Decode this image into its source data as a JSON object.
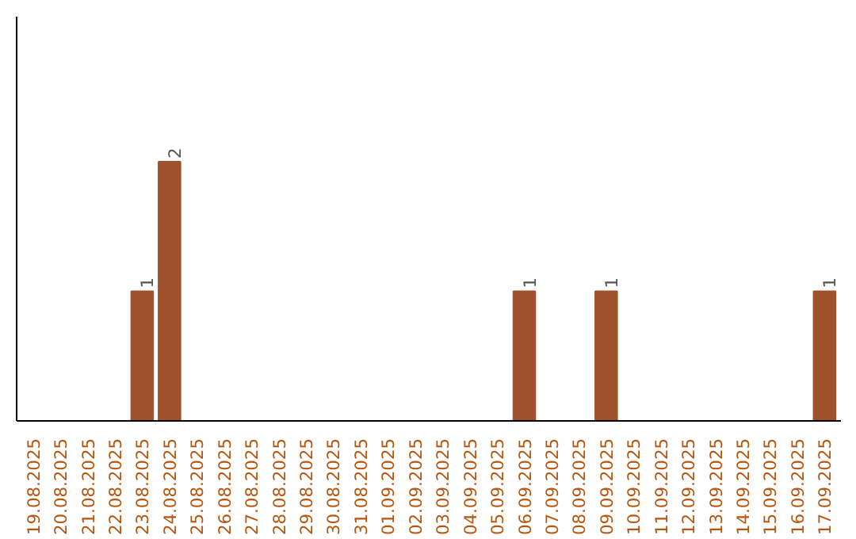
{
  "chart_data": {
    "type": "bar",
    "categories": [
      "19.08.2025",
      "20.08.2025",
      "21.08.2025",
      "22.08.2025",
      "23.08.2025",
      "24.08.2025",
      "25.08.2025",
      "26.08.2025",
      "27.08.2025",
      "28.08.2025",
      "29.08.2025",
      "30.08.2025",
      "31.08.2025",
      "01.09.2025",
      "02.09.2025",
      "03.09.2025",
      "04.09.2025",
      "05.09.2025",
      "06.09.2025",
      "07.09.2025",
      "08.09.2025",
      "09.09.2025",
      "10.09.2025",
      "11.09.2025",
      "12.09.2025",
      "13.09.2025",
      "14.09.2025",
      "15.09.2025",
      "16.09.2025",
      "17.09.2025"
    ],
    "values": [
      0,
      0,
      0,
      0,
      1,
      2,
      0,
      0,
      0,
      0,
      0,
      0,
      0,
      0,
      0,
      0,
      0,
      0,
      1,
      0,
      0,
      1,
      0,
      0,
      0,
      0,
      0,
      0,
      0,
      1
    ],
    "value_labels": [
      null,
      null,
      null,
      null,
      "1",
      "2",
      null,
      null,
      null,
      null,
      null,
      null,
      null,
      null,
      null,
      null,
      null,
      null,
      "1",
      null,
      null,
      "1",
      null,
      null,
      null,
      null,
      null,
      null,
      null,
      "1"
    ],
    "color": "#a0522d",
    "grid": false,
    "tick_labels": "x"
  }
}
